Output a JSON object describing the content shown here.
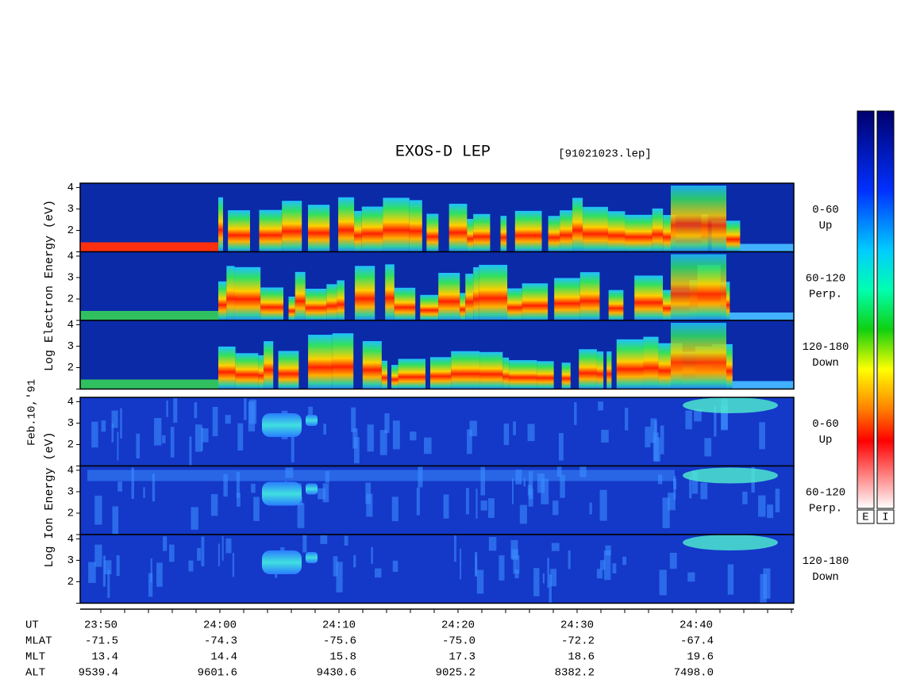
{
  "title": "EXOS-D LEP",
  "file": "[91021023.lep]",
  "date": "Feb.10,'91",
  "electron_axis_label": "Log Electron Energy (eV)",
  "ion_axis_label": "Log Ion Energy (eV)",
  "ylim": [
    1,
    4.2
  ],
  "yticks": [
    2,
    3,
    4
  ],
  "panels": [
    {
      "range": "0-60",
      "direction": "Up"
    },
    {
      "range": "60-120",
      "direction": "Perp."
    },
    {
      "range": "120-180",
      "direction": "Down"
    }
  ],
  "orbit": {
    "rows": [
      {
        "name": "UT",
        "values": [
          "23:50",
          "24:00",
          "24:10",
          "24:20",
          "24:30",
          "24:40"
        ]
      },
      {
        "name": "MLAT",
        "values": [
          "-71.5",
          "-74.3",
          "-75.6",
          "-75.0",
          "-72.2",
          "-67.4"
        ]
      },
      {
        "name": "MLT",
        "values": [
          "13.4",
          "14.4",
          "15.8",
          "17.3",
          "18.6",
          "19.6"
        ]
      },
      {
        "name": "ALT",
        "values": [
          "9539.4",
          "9601.6",
          "9430.6",
          "9025.2",
          "8382.2",
          "7498.0"
        ]
      }
    ]
  },
  "colorbars": [
    "E",
    "I"
  ]
}
